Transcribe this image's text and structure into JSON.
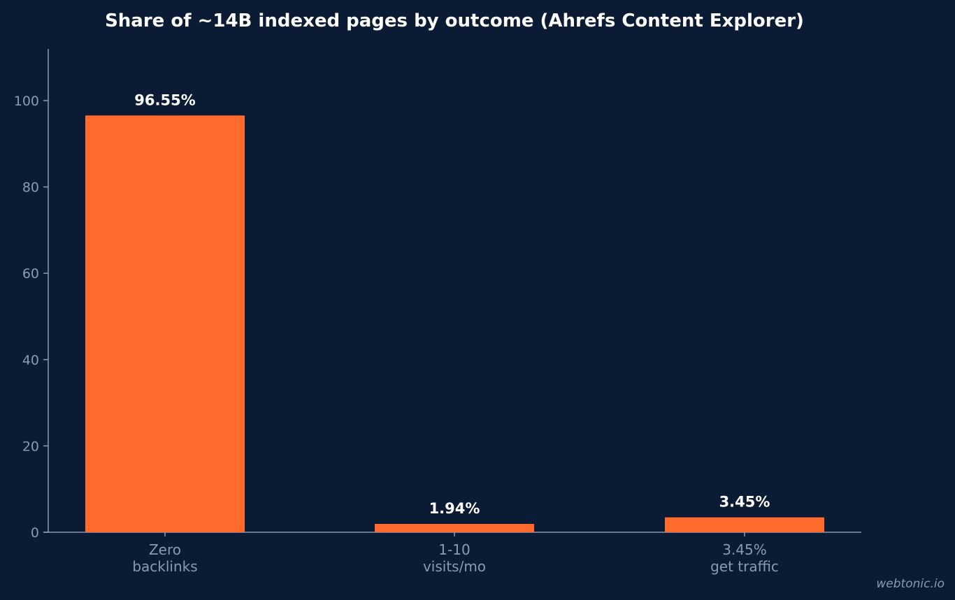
{
  "watermark": "webtonic.io",
  "colors": {
    "background": "#0b1b33",
    "bar": "#ff6b2c",
    "axis": "#8c9ab0",
    "text": "#ffffff"
  },
  "chart_data": {
    "type": "bar",
    "title": "Share of ~14B indexed pages by outcome (Ahrefs Content Explorer)",
    "xlabel": "",
    "ylabel": "",
    "categories": [
      [
        "Zero",
        "backlinks"
      ],
      [
        "1-10",
        "visits/mo"
      ],
      [
        "3.45%",
        "get traffic"
      ]
    ],
    "values": [
      96.55,
      1.94,
      3.45
    ],
    "value_labels": [
      "96.55%",
      "1.94%",
      "3.45%"
    ],
    "ylim": [
      0,
      112
    ],
    "yticks": [
      0,
      20,
      40,
      60,
      80,
      100
    ],
    "grid": false,
    "legend": "none"
  }
}
